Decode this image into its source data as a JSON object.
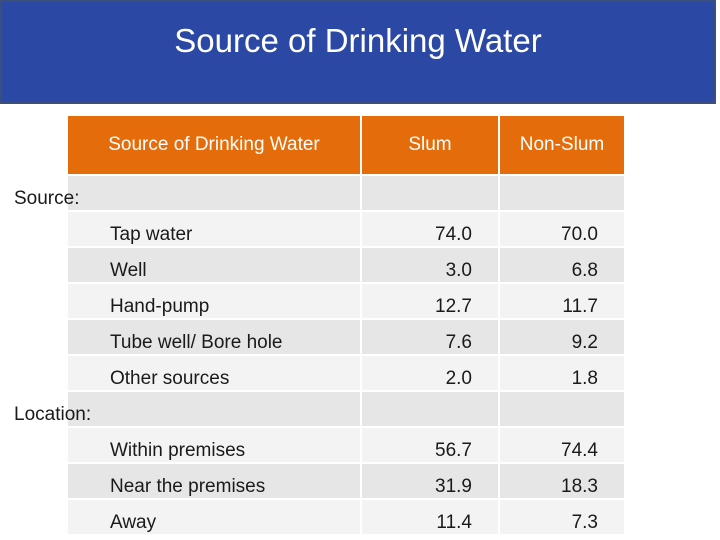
{
  "title": "Source of Drinking Water",
  "table": {
    "headers": [
      "Source of Drinking Water",
      "Slum",
      "Non-Slum"
    ],
    "rows": [
      {
        "type": "section",
        "label": "Source:"
      },
      {
        "type": "item",
        "label": "Tap water",
        "slum": "74.0",
        "non_slum": "70.0"
      },
      {
        "type": "item",
        "label": "Well",
        "slum": "3.0",
        "non_slum": "6.8"
      },
      {
        "type": "item",
        "label": "Hand-pump",
        "slum": "12.7",
        "non_slum": "11.7"
      },
      {
        "type": "item",
        "label": "Tube well/ Bore hole",
        "slum": "7.6",
        "non_slum": "9.2"
      },
      {
        "type": "item",
        "label": "Other sources",
        "slum": "2.0",
        "non_slum": "1.8"
      },
      {
        "type": "section",
        "label": "Location:"
      },
      {
        "type": "item",
        "label": "Within premises",
        "slum": "56.7",
        "non_slum": "74.4"
      },
      {
        "type": "item",
        "label": "Near the premises",
        "slum": "31.9",
        "non_slum": "18.3"
      },
      {
        "type": "item",
        "label": "Away",
        "slum": "11.4",
        "non_slum": "7.3"
      }
    ]
  },
  "colors": {
    "title_bar": "#2b49a4",
    "header_fill": "#e46c0a",
    "row_dark": "#e6e6e6",
    "row_light": "#f3f3f3"
  }
}
